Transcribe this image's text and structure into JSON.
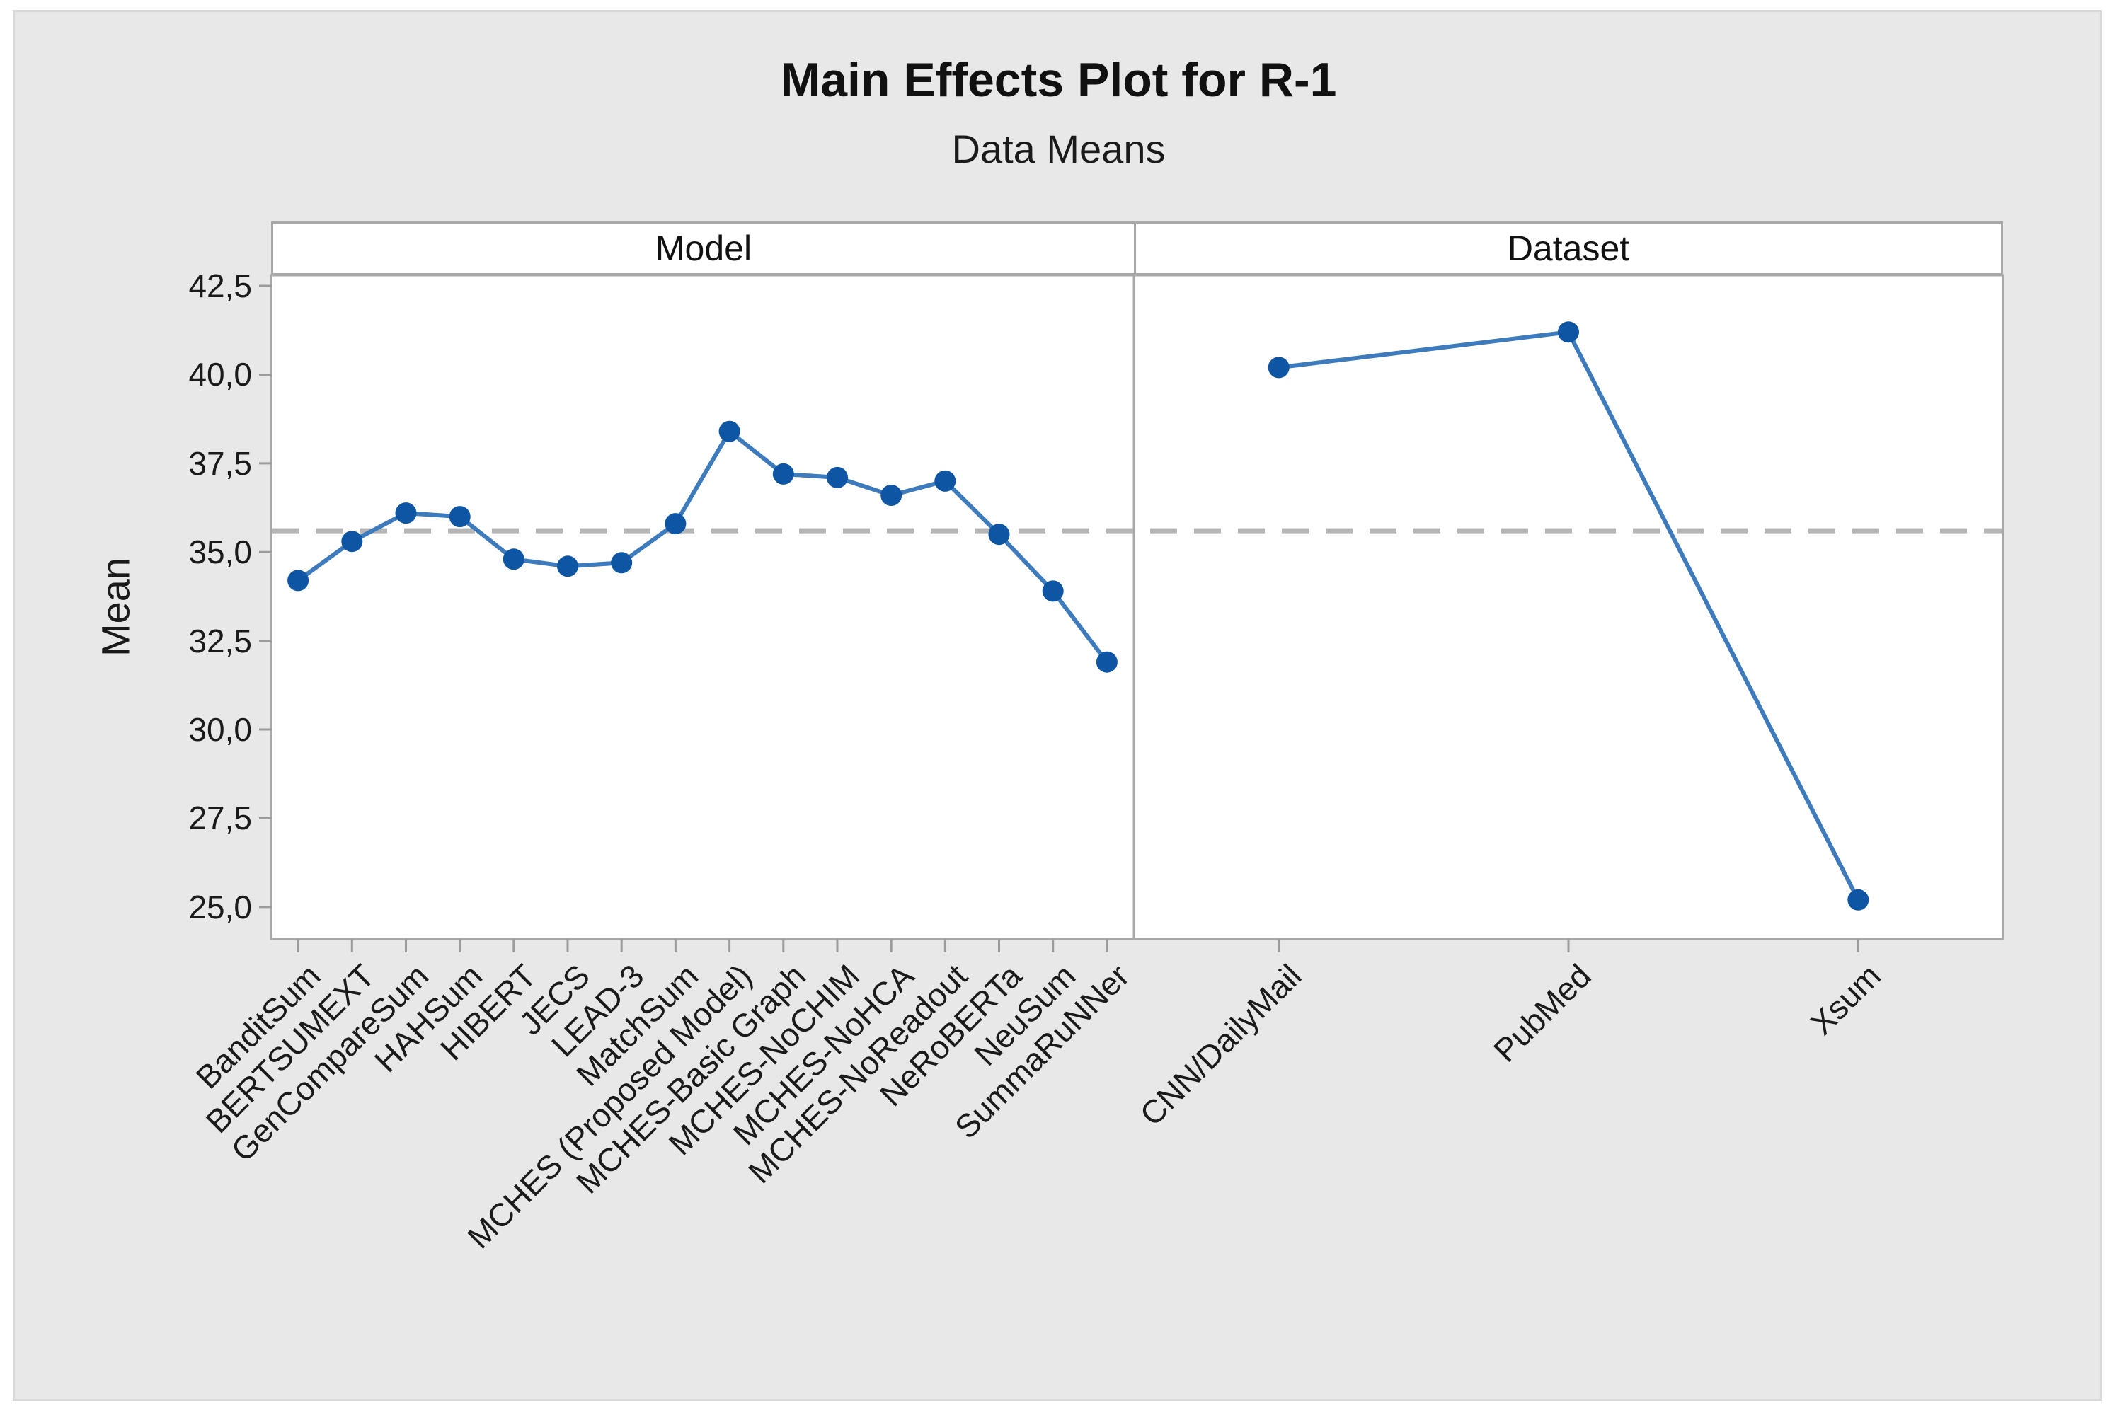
{
  "chart_data": {
    "type": "line",
    "title": "Main Effects Plot for R-1",
    "subtitle": "Data Means",
    "ylabel": "Mean",
    "y_ticks": [
      {
        "value": 42.5,
        "label": "42,5"
      },
      {
        "value": 40.0,
        "label": "40,0"
      },
      {
        "value": 37.5,
        "label": "37,5"
      },
      {
        "value": 35.0,
        "label": "35,0"
      },
      {
        "value": 32.5,
        "label": "32,5"
      },
      {
        "value": 30.0,
        "label": "30,0"
      },
      {
        "value": 27.5,
        "label": "27,5"
      },
      {
        "value": 25.0,
        "label": "25,0"
      }
    ],
    "ylim": [
      24.1,
      42.8
    ],
    "reference_line_mean": 35.6,
    "grid": false,
    "legend": "none",
    "panels": [
      {
        "label": "Model",
        "categories": [
          "BanditSum",
          "BERTSUMEXT",
          "GenCompareSum",
          "HAHSum",
          "HIBERT",
          "JECS",
          "LEAD-3",
          "MatchSum",
          "MCHES (Proposed Model)",
          "MCHES-Basic Graph",
          "MCHES-NoCHIM",
          "MCHES-NoHCA",
          "MCHES-NoReadout",
          "NeRoBERTa",
          "NeuSum",
          "SummaRuNNer"
        ],
        "values": [
          34.2,
          35.3,
          36.1,
          36.0,
          34.8,
          34.6,
          34.7,
          35.8,
          38.4,
          37.2,
          37.1,
          36.6,
          37.0,
          35.5,
          33.9,
          31.9
        ]
      },
      {
        "label": "Dataset",
        "categories": [
          "CNN/DailyMail",
          "PubMed",
          "Xsum"
        ],
        "values": [
          40.2,
          41.2,
          25.2
        ]
      }
    ],
    "colors": {
      "marker": "#0e55a4",
      "line": "#3e7bbc",
      "reference_line": "#b5b5b5",
      "panel_border": "#a8a8a8",
      "tick": "#9b9b9b",
      "plot_background": "#ffffff",
      "figure_background": "#e8e8e8",
      "text": "#1a1a1a"
    }
  }
}
